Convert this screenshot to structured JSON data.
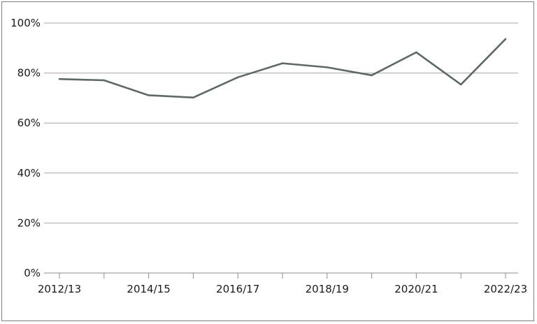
{
  "chart_data": {
    "type": "line",
    "title": "",
    "xlabel": "",
    "ylabel": "",
    "x": [
      "2012/13",
      "2013/14",
      "2014/15",
      "2015/16",
      "2016/17",
      "2017/18",
      "2018/19",
      "2019/20",
      "2020/21",
      "2021/22",
      "2022/23"
    ],
    "x_tick_labels": [
      "2012/13",
      "2014/15",
      "2016/17",
      "2018/19",
      "2020/21",
      "2022/23"
    ],
    "series": [
      {
        "values": [
          77.6,
          77.1,
          71.1,
          70.2,
          78.3,
          83.9,
          82.3,
          79.1,
          88.3,
          75.4,
          93.6
        ]
      }
    ],
    "ylim": [
      0,
      100
    ],
    "y_ticks": [
      0,
      20,
      40,
      60,
      80,
      100
    ],
    "y_tick_labels": [
      "0%",
      "20%",
      "40%",
      "60%",
      "80%",
      "100%"
    ],
    "grid": "horizontal",
    "legend": "none",
    "colors": {
      "line": "#5b6b63",
      "grid": "#a6a6a6",
      "axis": "#8c8c8c",
      "text": "#1a1a1a"
    }
  }
}
